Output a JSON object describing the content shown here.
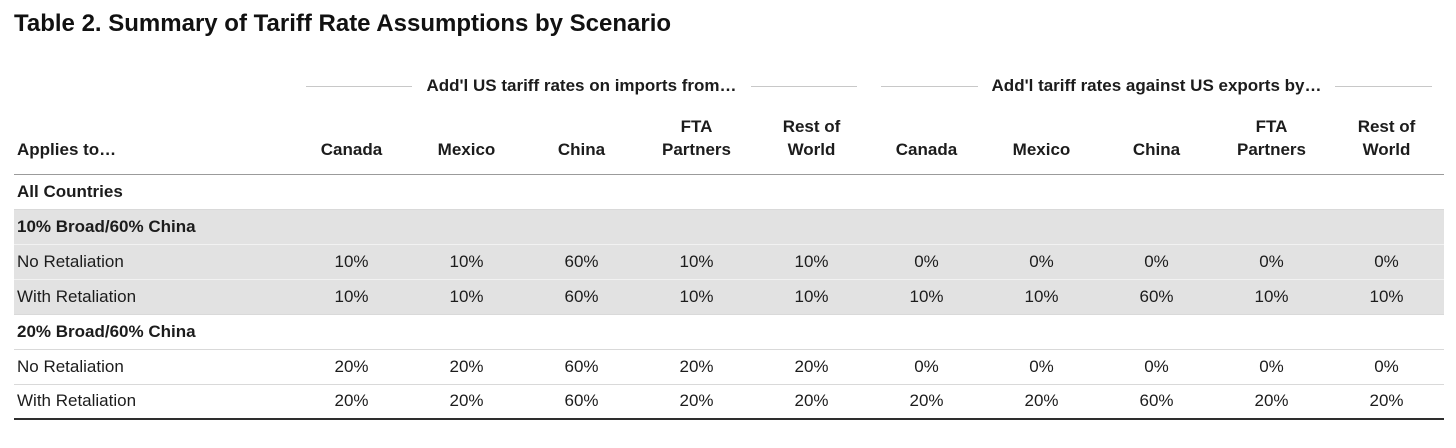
{
  "title": "Table 2. Summary of Tariff Rate Assumptions by Scenario",
  "table": {
    "applies_to_header": "Applies to…",
    "groups": [
      {
        "label": "Add'l US tariff rates on imports from…",
        "columns": [
          "Canada",
          "Mexico",
          "China",
          "FTA\nPartners",
          "Rest of\nWorld"
        ]
      },
      {
        "label": "Add'l tariff rates against US exports by…",
        "columns": [
          "Canada",
          "Mexico",
          "China",
          "FTA\nPartners",
          "Rest of\nWorld"
        ]
      }
    ],
    "rows": [
      {
        "label": "All Countries",
        "type": "section",
        "shaded": false,
        "values": []
      },
      {
        "label": "10% Broad/60% China",
        "type": "subsection",
        "shaded": true,
        "values": []
      },
      {
        "label": "No Retaliation",
        "type": "data",
        "shaded": true,
        "values": [
          "10%",
          "10%",
          "60%",
          "10%",
          "10%",
          "0%",
          "0%",
          "0%",
          "0%",
          "0%"
        ]
      },
      {
        "label": "With Retaliation",
        "type": "data",
        "shaded": true,
        "values": [
          "10%",
          "10%",
          "60%",
          "10%",
          "10%",
          "10%",
          "10%",
          "60%",
          "10%",
          "10%"
        ]
      },
      {
        "label": "20% Broad/60% China",
        "type": "subsection",
        "shaded": false,
        "values": []
      },
      {
        "label": "No Retaliation",
        "type": "data",
        "shaded": false,
        "values": [
          "20%",
          "20%",
          "60%",
          "20%",
          "20%",
          "0%",
          "0%",
          "0%",
          "0%",
          "0%"
        ]
      },
      {
        "label": "With Retaliation",
        "type": "data",
        "shaded": false,
        "values": [
          "20%",
          "20%",
          "60%",
          "20%",
          "20%",
          "20%",
          "20%",
          "60%",
          "20%",
          "20%"
        ]
      }
    ]
  }
}
